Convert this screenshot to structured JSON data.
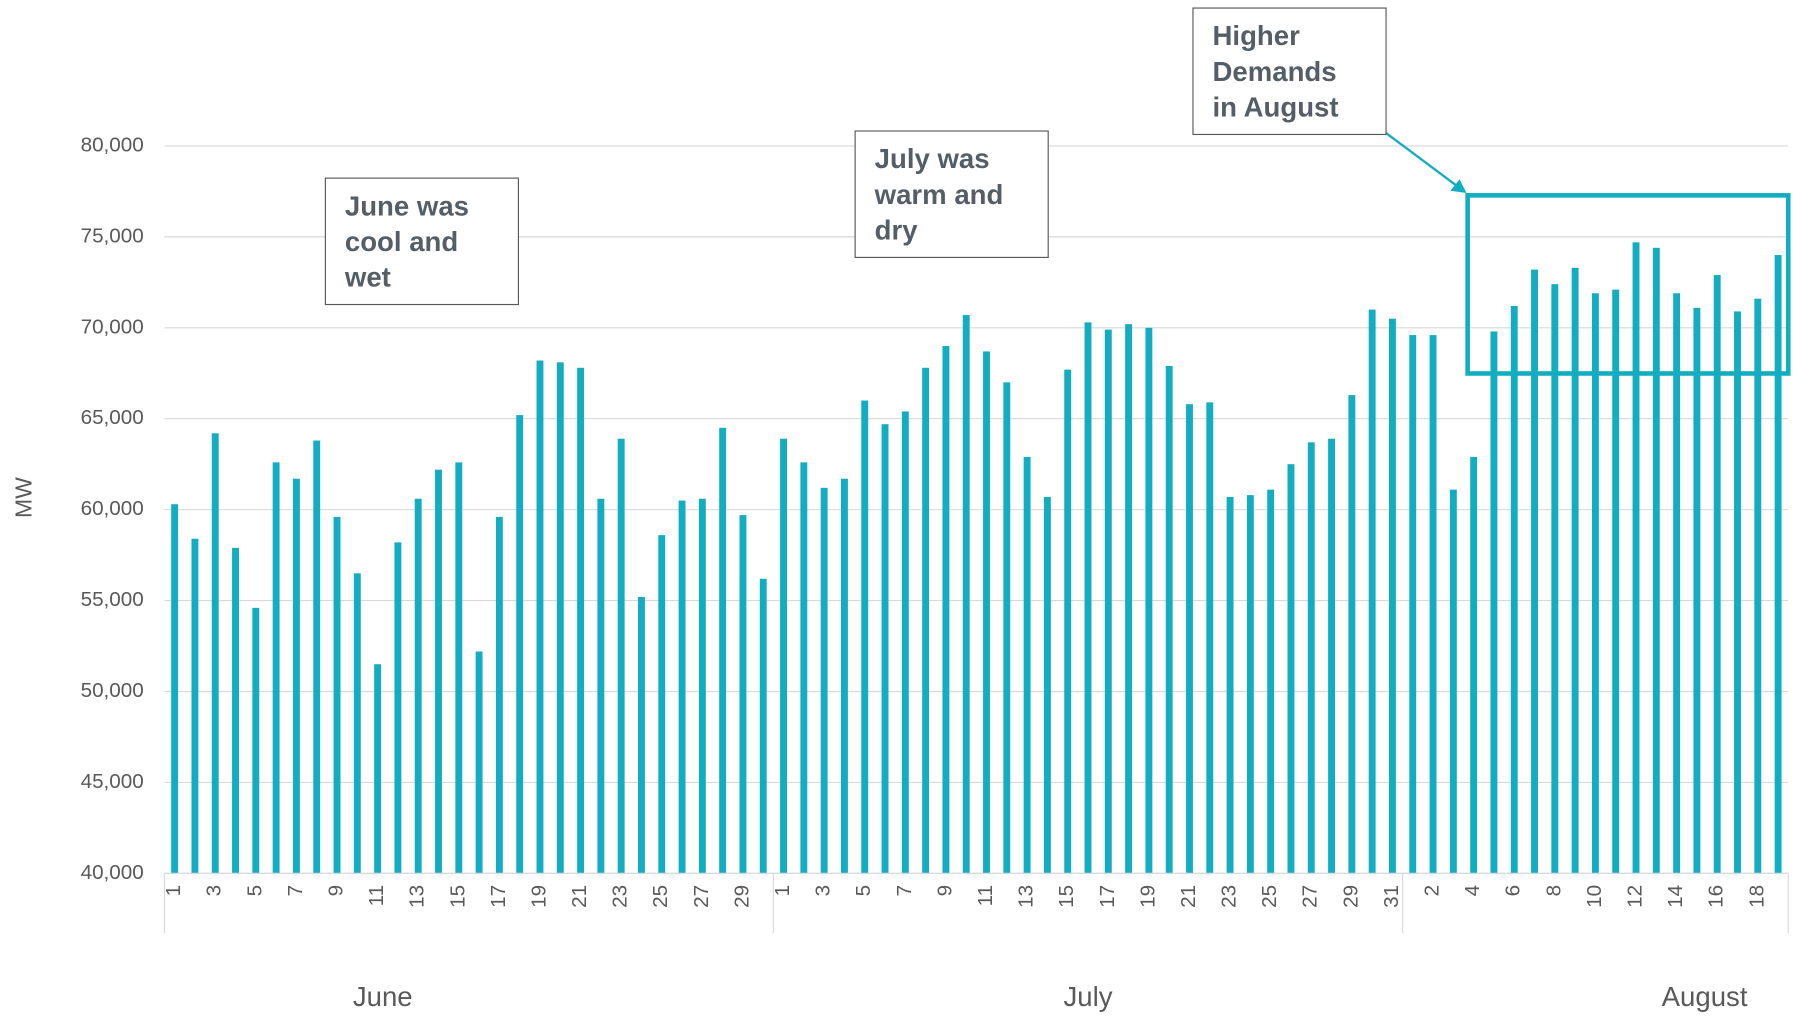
{
  "chart_data": {
    "type": "bar",
    "y_label": "MW",
    "color": "#12adc1",
    "grid": true,
    "ylim": [
      40000,
      80000
    ],
    "yticks": [
      {
        "value": 40000,
        "label": "40,000"
      },
      {
        "value": 45000,
        "label": "45,000"
      },
      {
        "value": 50000,
        "label": "50,000"
      },
      {
        "value": 55000,
        "label": "55,000"
      },
      {
        "value": 60000,
        "label": "60,000"
      },
      {
        "value": 65000,
        "label": "65,000"
      },
      {
        "value": 70000,
        "label": "70,000"
      },
      {
        "value": 75000,
        "label": "75,000"
      },
      {
        "value": 80000,
        "label": "80,000"
      }
    ],
    "categories": [
      "1",
      null,
      "3",
      null,
      "5",
      null,
      "7",
      null,
      "9",
      null,
      "11",
      null,
      "13",
      null,
      "15",
      null,
      "17",
      null,
      "19",
      null,
      "21",
      null,
      "23",
      null,
      "25",
      null,
      "27",
      null,
      "29",
      null,
      "1",
      null,
      "3",
      null,
      "5",
      null,
      "7",
      null,
      "9",
      null,
      "11",
      null,
      "13",
      null,
      "15",
      null,
      "17",
      null,
      "19",
      null,
      "21",
      null,
      "23",
      null,
      "25",
      null,
      "27",
      null,
      "29",
      null,
      "31",
      null,
      "2",
      null,
      "4",
      null,
      "6",
      null,
      "8",
      null,
      "10",
      null,
      "12",
      null,
      "14",
      null,
      "16",
      null,
      "18",
      null
    ],
    "values": [
      60300,
      58400,
      64200,
      57900,
      54600,
      62600,
      61700,
      63800,
      59600,
      56500,
      51500,
      58200,
      60600,
      62200,
      62600,
      52200,
      59600,
      65200,
      68200,
      68100,
      67800,
      60600,
      63900,
      55200,
      58600,
      60500,
      60600,
      64500,
      59700,
      56200,
      63900,
      62600,
      61200,
      61700,
      66000,
      64700,
      65400,
      67800,
      69000,
      70700,
      68700,
      67000,
      62900,
      60700,
      67700,
      70300,
      69900,
      70200,
      70000,
      67900,
      65800,
      65900,
      60700,
      60800,
      61100,
      62500,
      63700,
      63900,
      66300,
      71000,
      70500,
      69600,
      69600,
      61100,
      62900,
      69800,
      71200,
      73200,
      72400,
      73300,
      71900,
      72100,
      74700,
      74400,
      71900,
      71100,
      72900,
      70900,
      71600,
      74000
    ],
    "groups": [
      {
        "label": "June",
        "count": 30
      },
      {
        "label": "July",
        "count": 31
      },
      {
        "label": "August",
        "count": 19
      }
    ],
    "annotations": [
      {
        "lines": [
          "June was",
          "cool and",
          "wet"
        ]
      },
      {
        "lines": [
          "July was",
          "warm and",
          "dry"
        ]
      },
      {
        "lines": [
          "Higher",
          "Demands",
          "in August"
        ]
      }
    ]
  }
}
